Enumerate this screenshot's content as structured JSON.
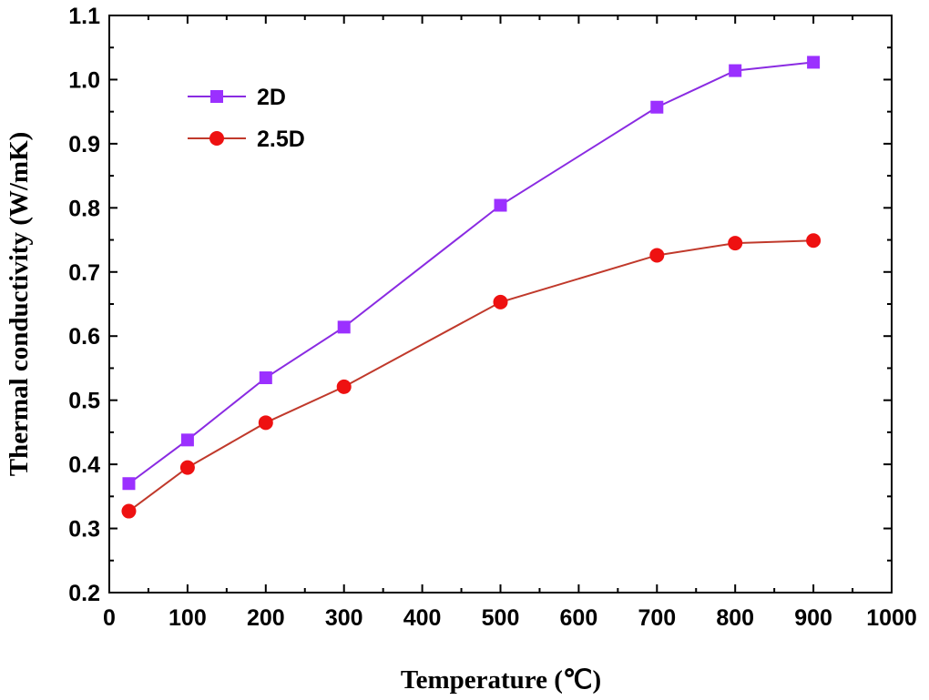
{
  "chart_data": {
    "type": "line",
    "xlabel": "Temperature (℃)",
    "ylabel": "Thermal conductivity (W/mK)",
    "xlim": [
      0,
      1000
    ],
    "ylim": [
      0.2,
      1.1
    ],
    "x_ticks": [
      0,
      100,
      200,
      300,
      400,
      500,
      600,
      700,
      800,
      900,
      1000
    ],
    "x_tick_labels": [
      "0",
      "100",
      "200",
      "300",
      "400",
      "500",
      "600",
      "700",
      "800",
      "900",
      "1000"
    ],
    "y_ticks": [
      0.2,
      0.3,
      0.4,
      0.5,
      0.6,
      0.7,
      0.8,
      0.9,
      1.0,
      1.1
    ],
    "y_tick_labels": [
      "0.2",
      "0.3",
      "0.4",
      "0.5",
      "0.6",
      "0.7",
      "0.8",
      "0.9",
      "1.0",
      "1.1"
    ],
    "grid": false,
    "legend_position": "top-left",
    "x": [
      25,
      100,
      200,
      300,
      500,
      700,
      800,
      900
    ],
    "series": [
      {
        "name": "2D",
        "marker": "square",
        "color": "#9b30ff",
        "line_color": "#8a2be2",
        "values": [
          0.37,
          0.438,
          0.535,
          0.614,
          0.804,
          0.957,
          1.014,
          1.027
        ]
      },
      {
        "name": "2.5D",
        "marker": "circle",
        "color": "#ee1111",
        "line_color": "#c0392b",
        "values": [
          0.327,
          0.395,
          0.465,
          0.521,
          0.653,
          0.726,
          0.745,
          0.749
        ]
      }
    ]
  }
}
